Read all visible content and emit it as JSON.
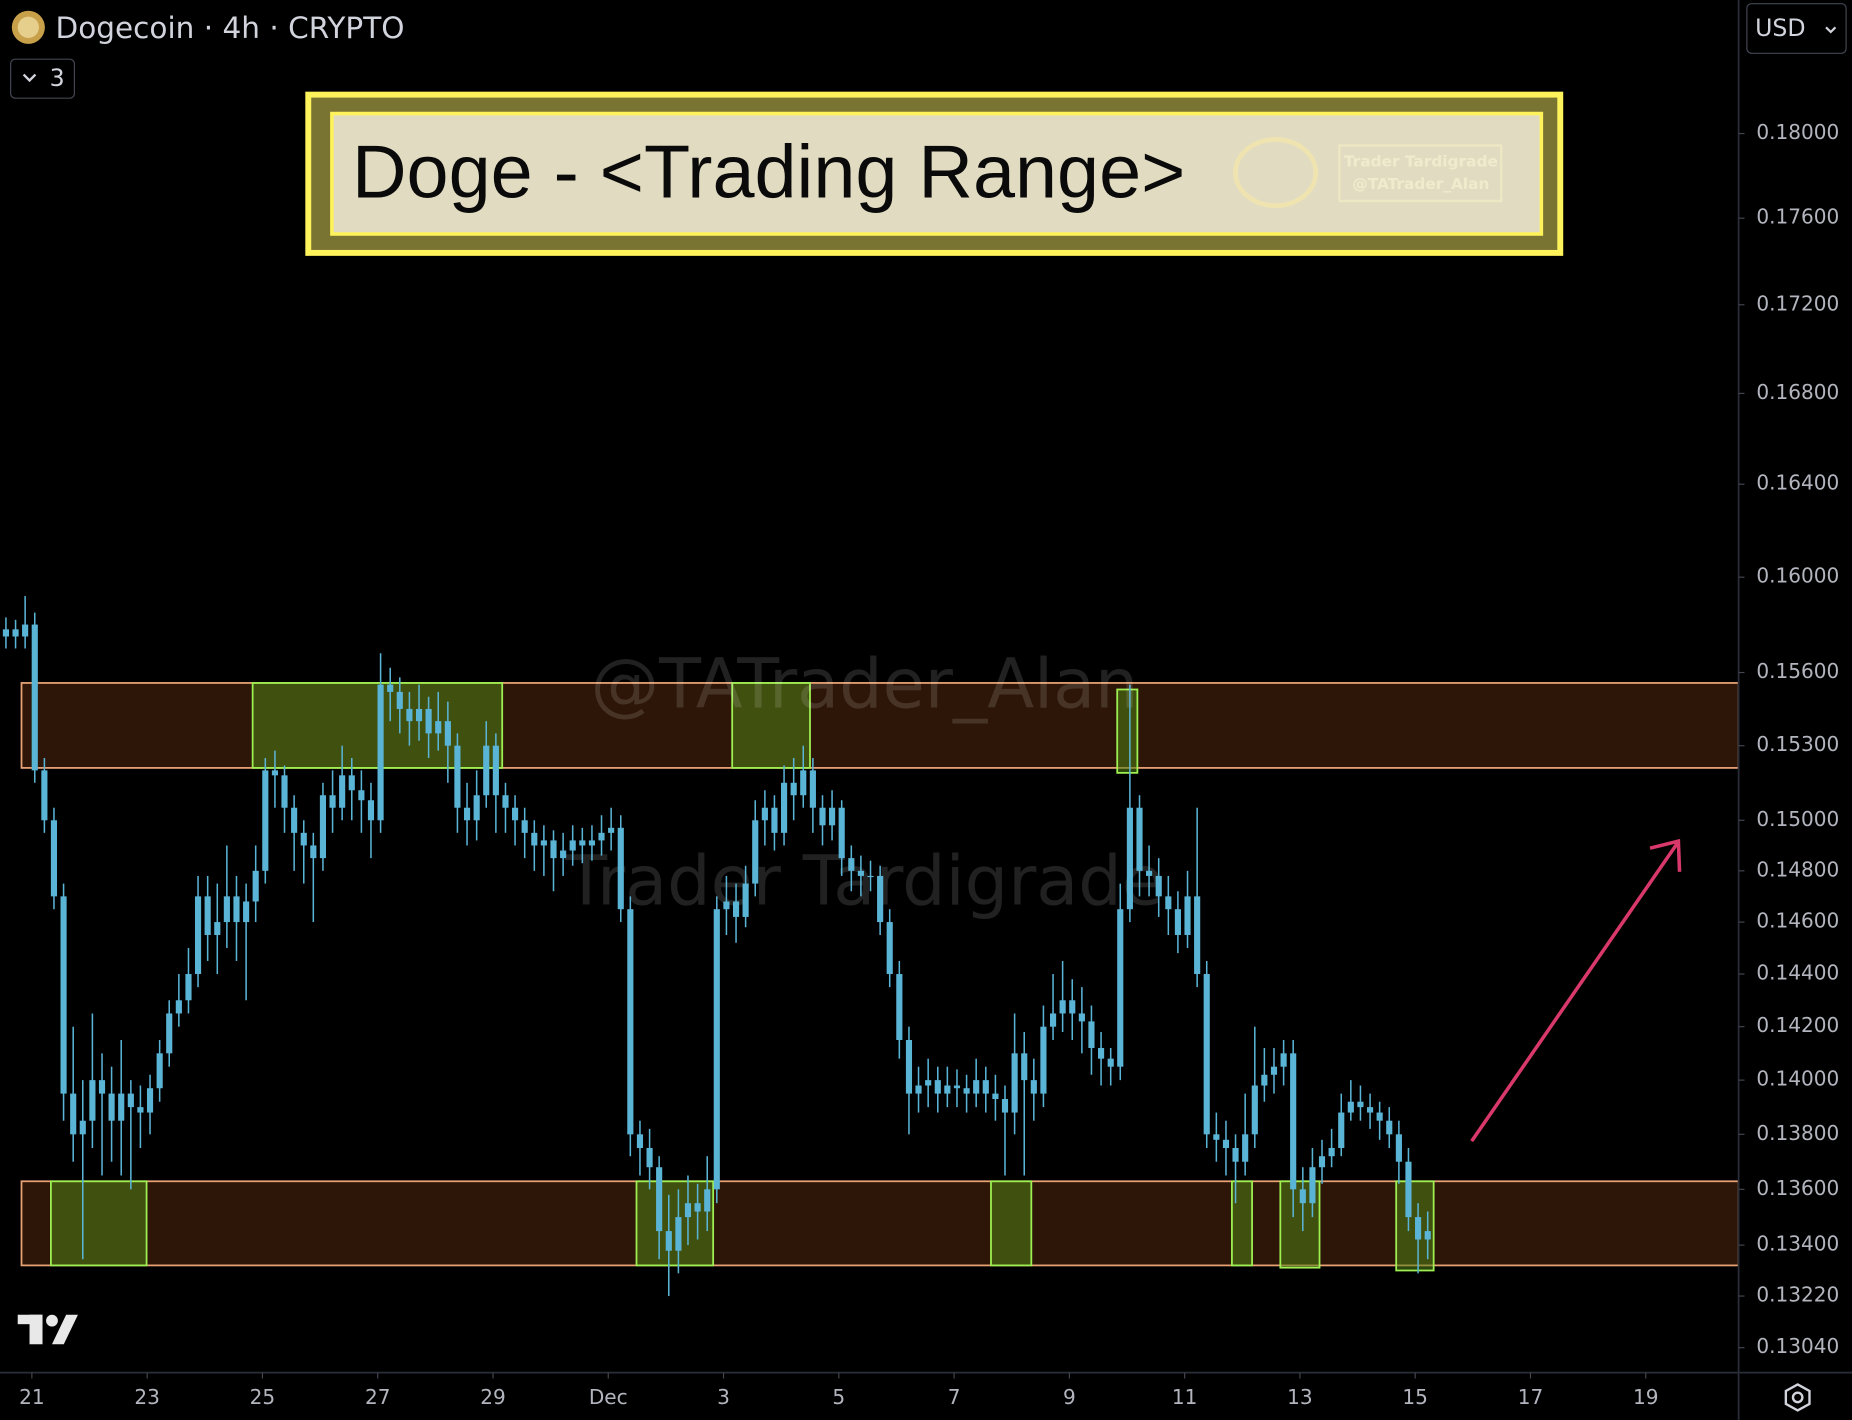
{
  "header": {
    "symbol": "Dogecoin · 4h · CRYPTO",
    "indicators": "3",
    "currency": "USD"
  },
  "chart_data": {
    "type": "candlestick",
    "title": "Doge - <Trading Range>",
    "badge": [
      "Trader Tardigrade",
      "@TATrader_Alan"
    ],
    "watermarks": [
      "@TATrader_Alan",
      "Trader Tardigrade"
    ],
    "color": "#5ab4d6",
    "log_scale": true,
    "xlim": [
      -0.553,
      29.611
    ],
    "ylim": [
      0.12954,
      0.18649
    ],
    "xticks": [
      {
        "value": 0,
        "label": "21"
      },
      {
        "value": 2,
        "label": "23"
      },
      {
        "value": 4,
        "label": "25"
      },
      {
        "value": 6,
        "label": "27"
      },
      {
        "value": 8,
        "label": "29"
      },
      {
        "value": 10,
        "label": "Dec"
      },
      {
        "value": 12,
        "label": "3"
      },
      {
        "value": 14,
        "label": "5"
      },
      {
        "value": 16,
        "label": "7"
      },
      {
        "value": 18,
        "label": "9"
      },
      {
        "value": 20,
        "label": "11"
      },
      {
        "value": 22,
        "label": "13"
      },
      {
        "value": 24,
        "label": "15"
      },
      {
        "value": 26,
        "label": "17"
      },
      {
        "value": 28,
        "label": "19"
      }
    ],
    "yticks": [
      {
        "value": 0.18,
        "label": "0.18000"
      },
      {
        "value": 0.176,
        "label": "0.17600"
      },
      {
        "value": 0.172,
        "label": "0.17200"
      },
      {
        "value": 0.168,
        "label": "0.16800"
      },
      {
        "value": 0.164,
        "label": "0.16400"
      },
      {
        "value": 0.16,
        "label": "0.16000"
      },
      {
        "value": 0.156,
        "label": "0.15600"
      },
      {
        "value": 0.153,
        "label": "0.15300"
      },
      {
        "value": 0.15,
        "label": "0.15000"
      },
      {
        "value": 0.148,
        "label": "0.14800"
      },
      {
        "value": 0.146,
        "label": "0.14600"
      },
      {
        "value": 0.144,
        "label": "0.14400"
      },
      {
        "value": 0.142,
        "label": "0.14200"
      },
      {
        "value": 0.14,
        "label": "0.14000"
      },
      {
        "value": 0.138,
        "label": "0.13800"
      },
      {
        "value": 0.136,
        "label": "0.13600"
      },
      {
        "value": 0.134,
        "label": "0.13400"
      },
      {
        "value": 0.1322,
        "label": "0.13220"
      },
      {
        "value": 0.1304,
        "label": "0.13040"
      }
    ],
    "zones": [
      {
        "start": -0.18,
        "low": 0.1521,
        "high": 0.15557
      },
      {
        "start": -0.18,
        "low": 0.13328,
        "high": 0.13629
      }
    ],
    "boxes": [
      {
        "start": 0.33,
        "end": 1.99,
        "low": 0.13328,
        "high": 0.13629
      },
      {
        "start": 3.83,
        "end": 8.16,
        "low": 0.1521,
        "high": 0.15557
      },
      {
        "start": 10.49,
        "end": 11.82,
        "low": 0.13328,
        "high": 0.13629
      },
      {
        "start": 12.15,
        "end": 13.5,
        "low": 0.1521,
        "high": 0.15557
      },
      {
        "start": 16.64,
        "end": 17.34,
        "low": 0.13328,
        "high": 0.13629
      },
      {
        "start": 18.83,
        "end": 19.18,
        "low": 0.1519,
        "high": 0.1553
      },
      {
        "start": 20.82,
        "end": 21.17,
        "low": 0.13328,
        "high": 0.13629
      },
      {
        "start": 21.66,
        "end": 22.34,
        "low": 0.1332,
        "high": 0.13629
      },
      {
        "start": 23.67,
        "end": 24.32,
        "low": 0.1331,
        "high": 0.13629
      }
    ],
    "x": [
      -0.45,
      -0.283,
      -0.117,
      0.05,
      0.217,
      0.383,
      0.55,
      0.717,
      0.883,
      1.05,
      1.217,
      1.383,
      1.55,
      1.717,
      1.883,
      2.05,
      2.217,
      2.383,
      2.55,
      2.717,
      2.883,
      3.05,
      3.217,
      3.383,
      3.55,
      3.717,
      3.883,
      4.05,
      4.217,
      4.383,
      4.55,
      4.717,
      4.883,
      5.05,
      5.217,
      5.383,
      5.55,
      5.717,
      5.883,
      6.05,
      6.217,
      6.383,
      6.55,
      6.717,
      6.883,
      7.05,
      7.217,
      7.383,
      7.55,
      7.717,
      7.883,
      8.05,
      8.217,
      8.383,
      8.55,
      8.717,
      8.883,
      9.05,
      9.217,
      9.383,
      9.55,
      9.717,
      9.883,
      10.05,
      10.217,
      10.383,
      10.55,
      10.717,
      10.883,
      11.05,
      11.217,
      11.383,
      11.55,
      11.717,
      11.883,
      12.05,
      12.217,
      12.383,
      12.55,
      12.717,
      12.883,
      13.05,
      13.217,
      13.383,
      13.55,
      13.717,
      13.883,
      14.05,
      14.217,
      14.383,
      14.55,
      14.717,
      14.883,
      15.05,
      15.217,
      15.383,
      15.55,
      15.717,
      15.883,
      16.05,
      16.217,
      16.383,
      16.55,
      16.717,
      16.883,
      17.05,
      17.217,
      17.383,
      17.55,
      17.717,
      17.883,
      18.05,
      18.217,
      18.383,
      18.55,
      18.717,
      18.883,
      19.05,
      19.217,
      19.383,
      19.55,
      19.717,
      19.883,
      20.05,
      20.217,
      20.383,
      20.55,
      20.717,
      20.883,
      21.05,
      21.217,
      21.383,
      21.55,
      21.717,
      21.883,
      22.05,
      22.217,
      22.383,
      22.55,
      22.717,
      22.883,
      23.05,
      23.217,
      23.383,
      23.55,
      23.717,
      23.883,
      24.05,
      24.217
    ],
    "open": [
      0.1575,
      0.1578,
      0.1575,
      0.158,
      0.152,
      0.15,
      0.147,
      0.1395,
      0.138,
      0.1385,
      0.14,
      0.1395,
      0.1385,
      0.1395,
      0.139,
      0.1388,
      0.1397,
      0.141,
      0.1425,
      0.143,
      0.144,
      0.147,
      0.1455,
      0.146,
      0.147,
      0.146,
      0.1468,
      0.148,
      0.152,
      0.1518,
      0.1505,
      0.1495,
      0.149,
      0.1485,
      0.151,
      0.1505,
      0.1518,
      0.1512,
      0.1508,
      0.15,
      0.1555,
      0.1552,
      0.1545,
      0.154,
      0.1545,
      0.1535,
      0.154,
      0.153,
      0.1505,
      0.15,
      0.151,
      0.153,
      0.151,
      0.1505,
      0.15,
      0.1495,
      0.149,
      0.1492,
      0.1485,
      0.1488,
      0.1492,
      0.149,
      0.1492,
      0.1495,
      0.1497,
      0.1465,
      0.138,
      0.1375,
      0.1368,
      0.1345,
      0.1338,
      0.135,
      0.1355,
      0.1352,
      0.136,
      0.1465,
      0.1468,
      0.1462,
      0.1475,
      0.15,
      0.1505,
      0.1495,
      0.1515,
      0.151,
      0.152,
      0.1505,
      0.1498,
      0.1505,
      0.1485,
      0.148,
      0.1478,
      0.1478,
      0.146,
      0.144,
      0.1415,
      0.1395,
      0.1398,
      0.14,
      0.1395,
      0.1398,
      0.1397,
      0.1395,
      0.14,
      0.1395,
      0.1393,
      0.1388,
      0.141,
      0.14,
      0.1395,
      0.142,
      0.1425,
      0.143,
      0.1425,
      0.1422,
      0.1412,
      0.1408,
      0.1405,
      0.1465,
      0.1505,
      0.148,
      0.1478,
      0.147,
      0.1465,
      0.1455,
      0.147,
      0.144,
      0.138,
      0.1378,
      0.1375,
      0.137,
      0.138,
      0.1398,
      0.1402,
      0.1405,
      0.141,
      0.136,
      0.1355,
      0.1368,
      0.1372,
      0.1375,
      0.1388,
      0.1392,
      0.139,
      0.1388,
      0.1385,
      0.138,
      0.137,
      0.135,
      0.1342
    ],
    "high": [
      0.1583,
      0.1582,
      0.1592,
      0.1585,
      0.1525,
      0.1505,
      0.1475,
      0.142,
      0.14,
      0.1425,
      0.141,
      0.1405,
      0.1415,
      0.14,
      0.1398,
      0.1402,
      0.1415,
      0.143,
      0.144,
      0.145,
      0.1478,
      0.1478,
      0.1475,
      0.149,
      0.1478,
      0.1475,
      0.149,
      0.1525,
      0.1528,
      0.1522,
      0.151,
      0.15,
      0.1495,
      0.1515,
      0.152,
      0.153,
      0.1525,
      0.152,
      0.1515,
      0.1568,
      0.1562,
      0.1558,
      0.1552,
      0.1555,
      0.155,
      0.1552,
      0.1548,
      0.1535,
      0.1515,
      0.152,
      0.154,
      0.1535,
      0.1515,
      0.151,
      0.1505,
      0.15,
      0.1498,
      0.1496,
      0.1495,
      0.1498,
      0.1497,
      0.1498,
      0.1502,
      0.1505,
      0.1502,
      0.147,
      0.1385,
      0.1382,
      0.1372,
      0.1358,
      0.136,
      0.1365,
      0.1362,
      0.1372,
      0.147,
      0.1478,
      0.1475,
      0.1482,
      0.1508,
      0.1512,
      0.151,
      0.1522,
      0.1525,
      0.153,
      0.1525,
      0.151,
      0.1512,
      0.1508,
      0.149,
      0.1486,
      0.1484,
      0.1482,
      0.1465,
      0.1445,
      0.142,
      0.1405,
      0.1408,
      0.1405,
      0.1405,
      0.1404,
      0.1402,
      0.1408,
      0.1405,
      0.1402,
      0.1398,
      0.1425,
      0.1418,
      0.1408,
      0.1428,
      0.144,
      0.1445,
      0.1438,
      0.1435,
      0.1428,
      0.1418,
      0.1412,
      0.1475,
      0.1555,
      0.151,
      0.149,
      0.1485,
      0.1478,
      0.1472,
      0.148,
      0.1505,
      0.1445,
      0.1388,
      0.1385,
      0.138,
      0.1395,
      0.142,
      0.1412,
      0.1412,
      0.1415,
      0.1415,
      0.1368,
      0.1375,
      0.1378,
      0.1382,
      0.1395,
      0.14,
      0.1398,
      0.1395,
      0.1392,
      0.139,
      0.1385,
      0.1375,
      0.1355,
      0.1352
    ],
    "low": [
      0.157,
      0.157,
      0.157,
      0.1515,
      0.1495,
      0.1465,
      0.1385,
      0.137,
      0.1335,
      0.1375,
      0.1365,
      0.137,
      0.1365,
      0.136,
      0.1375,
      0.138,
      0.1392,
      0.1405,
      0.142,
      0.1425,
      0.1435,
      0.1445,
      0.144,
      0.145,
      0.1445,
      0.143,
      0.146,
      0.1475,
      0.1505,
      0.1495,
      0.148,
      0.1475,
      0.146,
      0.148,
      0.1495,
      0.15,
      0.15,
      0.1495,
      0.1485,
      0.1495,
      0.154,
      0.1535,
      0.153,
      0.1532,
      0.1525,
      0.1528,
      0.1515,
      0.1495,
      0.149,
      0.1492,
      0.1505,
      0.1495,
      0.1495,
      0.149,
      0.1485,
      0.148,
      0.1478,
      0.1472,
      0.1478,
      0.1482,
      0.1483,
      0.1484,
      0.1486,
      0.1488,
      0.146,
      0.1372,
      0.1365,
      0.136,
      0.1335,
      0.1322,
      0.133,
      0.134,
      0.1342,
      0.1345,
      0.1355,
      0.1455,
      0.1452,
      0.1458,
      0.147,
      0.149,
      0.1488,
      0.149,
      0.15,
      0.1505,
      0.1495,
      0.149,
      0.1492,
      0.1478,
      0.1472,
      0.147,
      0.1472,
      0.1455,
      0.1435,
      0.1408,
      0.138,
      0.1388,
      0.139,
      0.1388,
      0.139,
      0.139,
      0.1388,
      0.139,
      0.1388,
      0.1385,
      0.1365,
      0.138,
      0.1365,
      0.1385,
      0.139,
      0.1415,
      0.1418,
      0.1415,
      0.141,
      0.1402,
      0.1398,
      0.1398,
      0.14,
      0.146,
      0.147,
      0.147,
      0.1462,
      0.1455,
      0.1448,
      0.145,
      0.1435,
      0.1375,
      0.137,
      0.1365,
      0.1355,
      0.1365,
      0.1375,
      0.1392,
      0.1395,
      0.1398,
      0.135,
      0.1345,
      0.135,
      0.1362,
      0.1368,
      0.1372,
      0.1385,
      0.1385,
      0.1382,
      0.1378,
      0.1375,
      0.1362,
      0.1345,
      0.133,
      0.1335
    ],
    "close": [
      0.1578,
      0.1575,
      0.158,
      0.152,
      0.15,
      0.147,
      0.1395,
      0.138,
      0.1385,
      0.14,
      0.1395,
      0.1385,
      0.1395,
      0.139,
      0.1388,
      0.1397,
      0.141,
      0.1425,
      0.143,
      0.144,
      0.147,
      0.1455,
      0.146,
      0.147,
      0.146,
      0.1468,
      0.148,
      0.152,
      0.1518,
      0.1505,
      0.1495,
      0.149,
      0.1485,
      0.151,
      0.1505,
      0.1518,
      0.1512,
      0.1508,
      0.15,
      0.1555,
      0.1552,
      0.1545,
      0.154,
      0.1545,
      0.1535,
      0.154,
      0.153,
      0.1505,
      0.15,
      0.151,
      0.153,
      0.151,
      0.1505,
      0.15,
      0.1495,
      0.149,
      0.1492,
      0.1485,
      0.1488,
      0.1492,
      0.149,
      0.1492,
      0.1495,
      0.1497,
      0.1465,
      0.138,
      0.1375,
      0.1368,
      0.1345,
      0.1338,
      0.135,
      0.1355,
      0.1352,
      0.136,
      0.1465,
      0.1468,
      0.1462,
      0.1475,
      0.15,
      0.1505,
      0.1495,
      0.1515,
      0.151,
      0.152,
      0.1505,
      0.1498,
      0.1505,
      0.1485,
      0.148,
      0.1478,
      0.1478,
      0.146,
      0.144,
      0.1415,
      0.1395,
      0.1398,
      0.14,
      0.1395,
      0.1398,
      0.1397,
      0.1395,
      0.14,
      0.1395,
      0.1393,
      0.1388,
      0.141,
      0.14,
      0.1395,
      0.142,
      0.1425,
      0.143,
      0.1425,
      0.1422,
      0.1412,
      0.1408,
      0.1405,
      0.1465,
      0.1505,
      0.148,
      0.1478,
      0.147,
      0.1465,
      0.1455,
      0.147,
      0.144,
      0.138,
      0.1378,
      0.1375,
      0.137,
      0.138,
      0.1398,
      0.1402,
      0.1405,
      0.141,
      0.136,
      0.1355,
      0.1368,
      0.1372,
      0.1375,
      0.1388,
      0.1392,
      0.139,
      0.1388,
      0.1385,
      0.138,
      0.137,
      0.135,
      0.1342,
      0.1345
    ]
  }
}
